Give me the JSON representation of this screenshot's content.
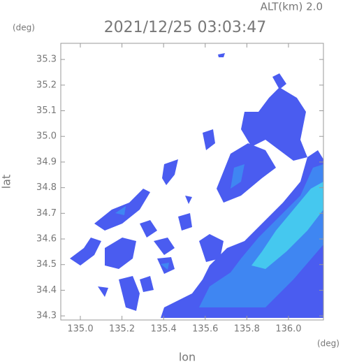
{
  "chart_data": {
    "type": "map",
    "title": "2021/12/25 03:03:47",
    "subtitle": "ALT(km) 2.0",
    "x_label": "lon",
    "y_label": "lat",
    "x_unit": "(deg)",
    "y_unit": "(deg)",
    "xlim": [
      134.906,
      136.168
    ],
    "ylim": [
      34.284,
      35.363
    ],
    "xticks": [
      {
        "value": 135,
        "label": "135.0"
      },
      135.2,
      135.4,
      135.6,
      135.8,
      {
        "value": 136,
        "label": "136.0"
      }
    ],
    "yticks": [
      34.3,
      34.4,
      34.5,
      34.6,
      34.7,
      34.8,
      34.9,
      {
        "value": 35,
        "label": "35.0"
      },
      35.1,
      35.2,
      35.3
    ]
  }
}
